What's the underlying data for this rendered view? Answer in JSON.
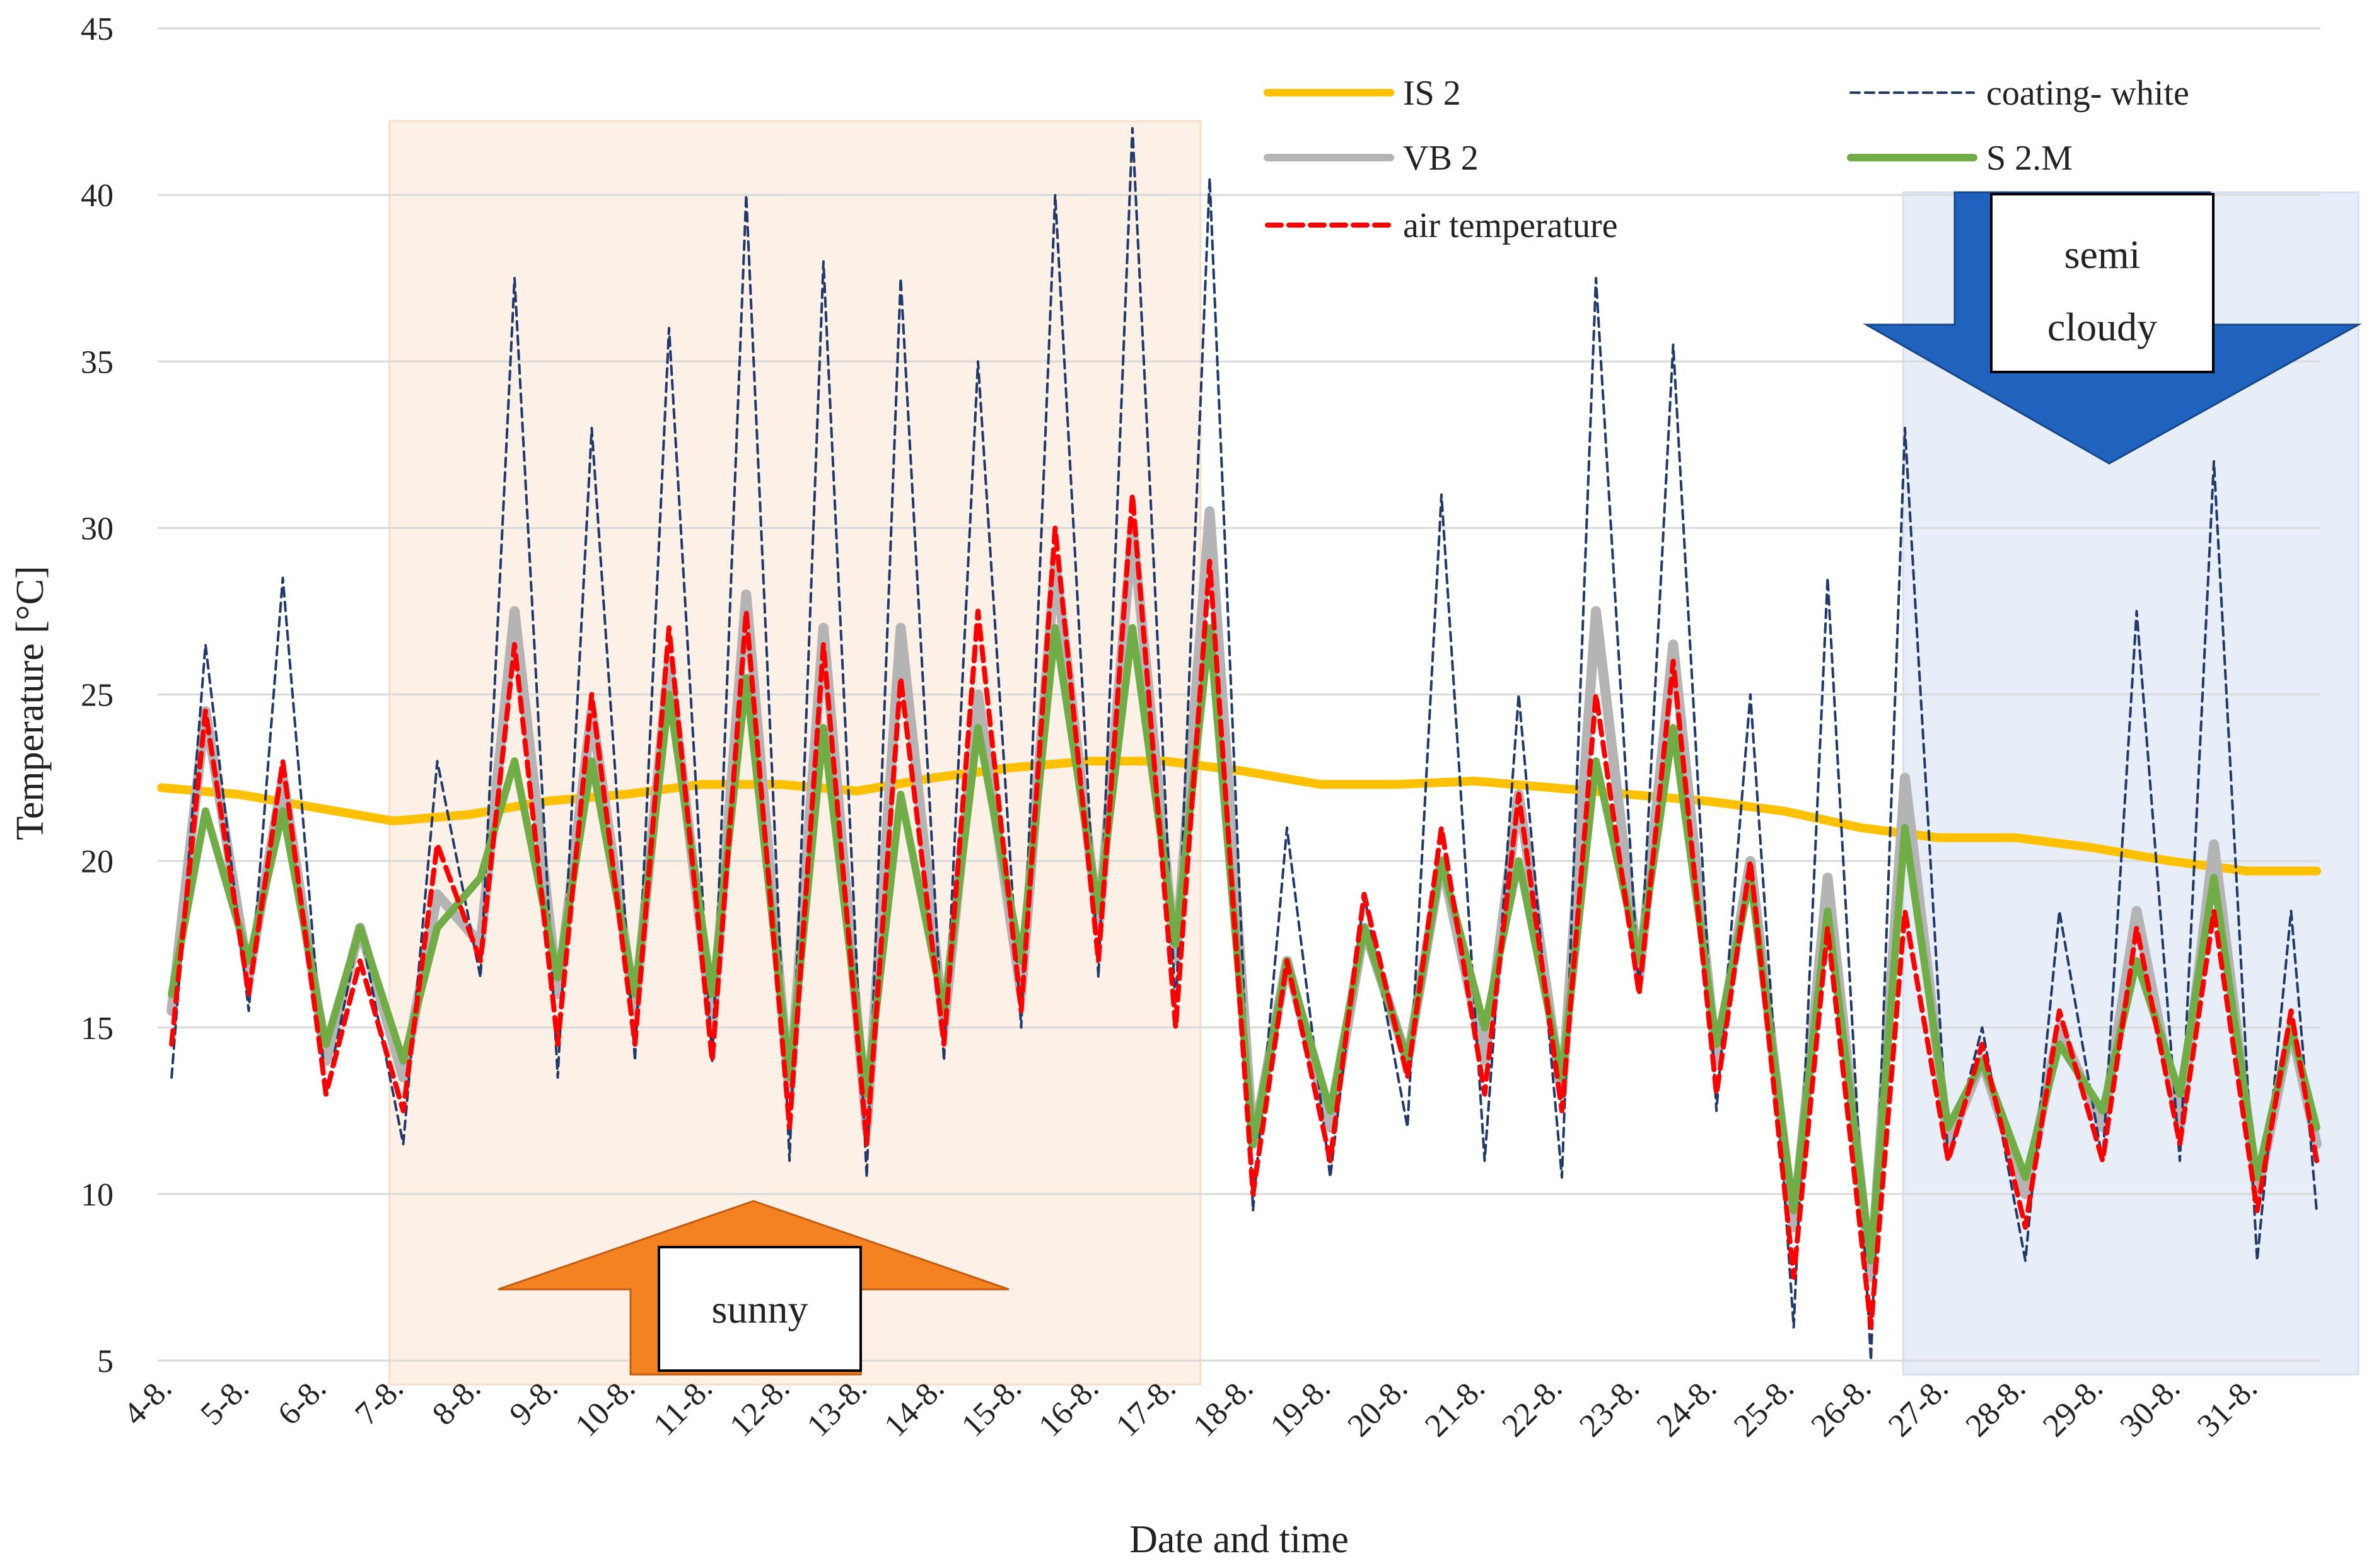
{
  "chart_data": {
    "type": "line",
    "xlabel": "Date and time",
    "ylabel": "Temperature [°C]",
    "ylim": [
      5,
      45
    ],
    "yticks": [
      5,
      10,
      15,
      20,
      25,
      30,
      35,
      40,
      45
    ],
    "grid": true,
    "categories": [
      "4-8.",
      "5-8.",
      "6-8.",
      "7-8.",
      "8-8.",
      "9-8.",
      "10-8.",
      "11-8.",
      "12-8.",
      "13-8.",
      "14-8.",
      "15-8.",
      "16-8.",
      "17-8.",
      "18-8.",
      "19-8.",
      "20-8.",
      "21-8.",
      "22-8.",
      "23-8.",
      "24-8.",
      "25-8.",
      "26-8.",
      "27-8.",
      "28-8.",
      "29-8.",
      "30-8.",
      "31-8."
    ],
    "x_domain": [
      0,
      28
    ],
    "legend_position": "top-right",
    "series": [
      {
        "name": "IS 2",
        "color": "#FFC000",
        "style": "solid",
        "values": [
          22.2,
          22.0,
          21.6,
          21.2,
          21.4,
          21.8,
          22.0,
          22.3,
          22.3,
          22.1,
          22.5,
          22.8,
          23.0,
          23.0,
          22.7,
          22.3,
          22.3,
          22.4,
          22.2,
          22.0,
          21.8,
          21.5,
          21.0,
          20.7,
          20.7,
          20.4,
          20.0,
          19.7
        ]
      },
      {
        "name": "VB 2",
        "color": "#B4B4B4",
        "style": "solid",
        "maxima": [
          24.5,
          22.5,
          18.0,
          19.0,
          27.5,
          24.5,
          26.0,
          28.0,
          27.0,
          27.0,
          25.0,
          29.0,
          30.0,
          30.5,
          17.0,
          18.0,
          20.0,
          22.0,
          27.5,
          26.5,
          20.0,
          19.5,
          22.5,
          14.0,
          15.0,
          18.5,
          20.5,
          15.0
        ],
        "minima": [
          15.5,
          16.5,
          14.0,
          13.5,
          17.5,
          16.0,
          15.5,
          15.0,
          13.0,
          12.0,
          15.0,
          16.0,
          18.0,
          17.0,
          11.5,
          12.0,
          14.0,
          14.0,
          13.0,
          16.5,
          14.0,
          9.0,
          7.5,
          11.5,
          10.0,
          12.0,
          12.0,
          10.0
        ]
      },
      {
        "name": "coating- white",
        "color": "#1F3A6B",
        "style": "dashed",
        "maxima": [
          26.5,
          28.5,
          18.0,
          23.0,
          37.5,
          33.0,
          36.0,
          40.0,
          38.0,
          37.5,
          35.0,
          40.0,
          42.0,
          40.5,
          21.0,
          19.0,
          31.0,
          25.0,
          37.5,
          35.5,
          25.0,
          28.5,
          33.0,
          15.0,
          18.5,
          27.5,
          32.0,
          18.5
        ],
        "minima": [
          13.5,
          15.5,
          13.0,
          11.5,
          16.5,
          13.5,
          14.0,
          14.0,
          11.0,
          10.5,
          14.0,
          15.0,
          16.5,
          15.5,
          9.5,
          10.5,
          12.0,
          11.0,
          10.5,
          16.0,
          12.5,
          6.0,
          5.0,
          11.0,
          8.0,
          11.0,
          11.0,
          8.0
        ]
      },
      {
        "name": "S 2.M",
        "color": "#70AD47",
        "style": "solid",
        "maxima": [
          21.5,
          21.5,
          18.0,
          18.0,
          23.0,
          23.0,
          25.0,
          25.5,
          24.0,
          22.0,
          24.0,
          27.0,
          27.0,
          27.0,
          17.0,
          18.0,
          20.0,
          20.0,
          23.0,
          24.0,
          19.5,
          18.5,
          21.0,
          14.0,
          14.5,
          17.0,
          19.5,
          15.0
        ],
        "minima": [
          16.0,
          17.0,
          14.5,
          14.0,
          19.5,
          16.5,
          16.0,
          16.0,
          13.5,
          13.0,
          15.5,
          17.0,
          18.5,
          17.5,
          11.5,
          12.5,
          14.0,
          15.0,
          13.5,
          17.0,
          14.5,
          9.5,
          8.0,
          12.0,
          10.5,
          12.5,
          13.0,
          10.5
        ]
      },
      {
        "name": "air temperature",
        "color": "#FF0000",
        "style": "dashed",
        "maxima": [
          24.5,
          23.0,
          17.0,
          20.5,
          26.5,
          25.0,
          27.0,
          27.5,
          26.5,
          25.5,
          27.5,
          30.0,
          31.0,
          29.0,
          17.0,
          19.0,
          21.0,
          22.0,
          25.0,
          26.0,
          20.0,
          18.0,
          18.5,
          14.5,
          15.5,
          18.0,
          18.5,
          15.5
        ],
        "minima": [
          14.5,
          16.0,
          13.0,
          12.5,
          17.0,
          14.5,
          14.5,
          14.0,
          12.0,
          11.5,
          14.5,
          15.5,
          17.0,
          15.0,
          10.0,
          11.0,
          13.5,
          13.0,
          12.5,
          16.0,
          13.0,
          7.5,
          6.0,
          11.0,
          9.0,
          11.0,
          11.5,
          9.5
        ]
      }
    ],
    "annotations": {
      "sunny": {
        "label": "sunny",
        "x_range": [
          3,
          13.5
        ]
      },
      "semi_cloudy": {
        "label_line1": "semi",
        "label_line2": "cloudy",
        "x_range": [
          22.6,
          28.5
        ]
      }
    }
  }
}
